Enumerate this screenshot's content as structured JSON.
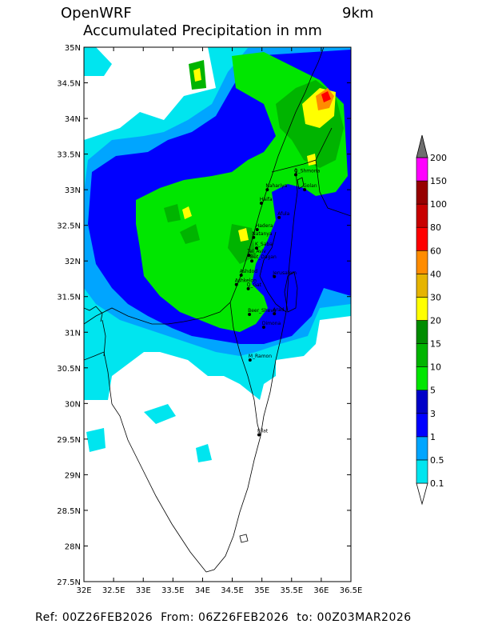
{
  "header": {
    "model": "OpenWRF",
    "resolution": "9km",
    "variable": "Accumulated Precipitation in mm"
  },
  "footer": {
    "ref_label": "Ref:",
    "ref": "00Z26FEB2026",
    "from_label": "From:",
    "from": "06Z26FEB2026",
    "to_label": "to:",
    "to": "00Z03MAR2026"
  },
  "map": {
    "lon_range": [
      32.0,
      36.5
    ],
    "lat_range": [
      27.5,
      35.0
    ],
    "lon_ticks": [
      "32E",
      "32.5E",
      "33E",
      "33.5E",
      "34E",
      "34.5E",
      "35E",
      "35.5E",
      "36E",
      "36.5E"
    ],
    "lat_ticks": [
      "27.5N",
      "28N",
      "28.5N",
      "29N",
      "29.5N",
      "30N",
      "30.5N",
      "31N",
      "31.5N",
      "32N",
      "32.5N",
      "33N",
      "33.5N",
      "34N",
      "34.5N",
      "35N"
    ],
    "cities": [
      {
        "name": "Q_Shmona",
        "lon": 35.57,
        "lat": 33.21
      },
      {
        "name": "Golan",
        "lon": 35.72,
        "lat": 33.0
      },
      {
        "name": "Nahariya",
        "lon": 35.09,
        "lat": 33.0
      },
      {
        "name": "Haifa",
        "lon": 34.99,
        "lat": 32.81
      },
      {
        "name": "Afula",
        "lon": 35.29,
        "lat": 32.61
      },
      {
        "name": "Hadera",
        "lon": 34.92,
        "lat": 32.44
      },
      {
        "name": "Natanya",
        "lon": 34.86,
        "lat": 32.33
      },
      {
        "name": "K_Saba",
        "lon": 34.91,
        "lat": 32.18
      },
      {
        "name": "Tel_Aviv",
        "lon": 34.78,
        "lat": 32.08
      },
      {
        "name": "Bet_Dagan",
        "lon": 34.83,
        "lat": 32.0
      },
      {
        "name": "Ashdod",
        "lon": 34.65,
        "lat": 31.8
      },
      {
        "name": "Jerusalem",
        "lon": 35.21,
        "lat": 31.78
      },
      {
        "name": "Ashkelon",
        "lon": 34.57,
        "lat": 31.67
      },
      {
        "name": "Q_Gat",
        "lon": 34.77,
        "lat": 31.61
      },
      {
        "name": "Beer_Sheva",
        "lon": 34.79,
        "lat": 31.25
      },
      {
        "name": "Arad",
        "lon": 35.21,
        "lat": 31.26
      },
      {
        "name": "Dimona",
        "lon": 35.03,
        "lat": 31.07
      },
      {
        "name": "M_Ramon",
        "lon": 34.8,
        "lat": 30.61
      },
      {
        "name": "Eilat",
        "lon": 34.95,
        "lat": 29.56
      }
    ]
  },
  "colorbar": {
    "levels": [
      "0.1",
      "0.5",
      "1",
      "3",
      "5",
      "10",
      "15",
      "20",
      "30",
      "40",
      "60",
      "80",
      "100",
      "150",
      "200"
    ],
    "colors": [
      "#00e5ef",
      "#00a5ff",
      "#0000ff",
      "#0000c8",
      "#00e600",
      "#00b400",
      "#008c00",
      "#ffff00",
      "#e6b400",
      "#ff8c00",
      "#ff0000",
      "#c80000",
      "#960000",
      "#ff00ff",
      "#a050dc",
      "#6e6e6e"
    ]
  }
}
